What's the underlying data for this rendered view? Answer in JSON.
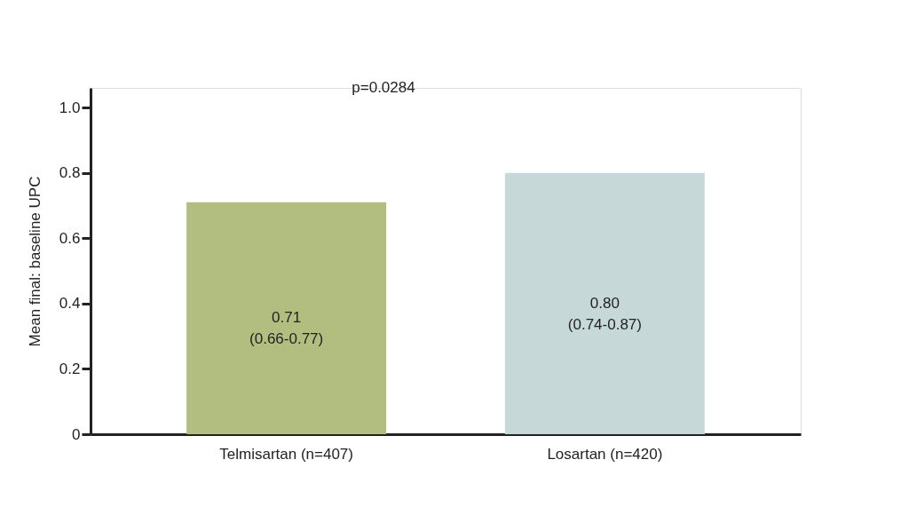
{
  "chart_data": {
    "type": "bar",
    "ylabel": "Mean final: baseline UPC",
    "categories": [
      "Telmisartan (n=407)",
      "Losartan (n=420)"
    ],
    "values": [
      0.71,
      0.8
    ],
    "colors": [
      "#b2be7f",
      "#c7d8d8"
    ],
    "value_labels": [
      "0.71\n(0.66-0.77)",
      "0.80\n(0.74-0.87)"
    ],
    "ylim": [
      0,
      1.06
    ],
    "yticks": [
      0,
      0.2,
      0.4,
      0.6,
      0.8,
      {
        "value": 1,
        "label": "1.0"
      }
    ],
    "grid": false,
    "annotations": [
      "p=0.0284"
    ]
  }
}
